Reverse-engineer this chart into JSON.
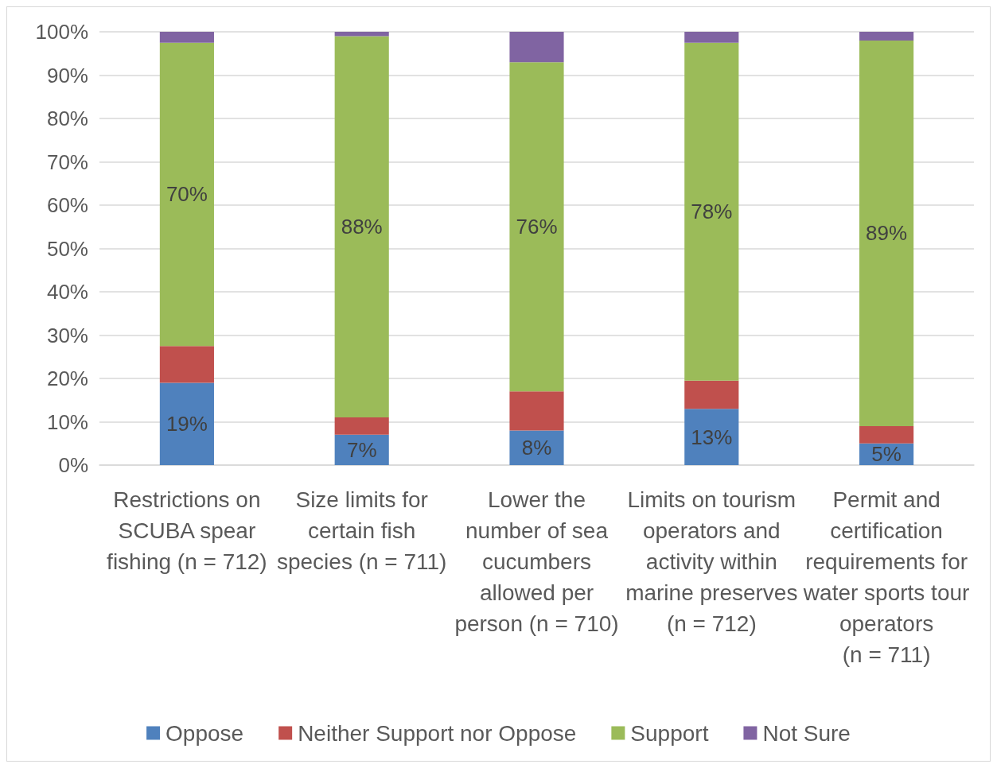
{
  "chart_data": {
    "type": "bar",
    "stacked": true,
    "categories": [
      "Restrictions on SCUBA spear fishing (n = 712)",
      "Size limits for certain fish species (n = 711)",
      "Lower the number of sea cucumbers allowed per person (n = 710)",
      "Limits on tourism operators and activity within marine preserves (n = 712)",
      "Permit and certification requirements for water sports tour operators (n = 711)"
    ],
    "series": [
      {
        "name": "Oppose",
        "color": "#4f81bd",
        "values": [
          19,
          7,
          8,
          13,
          5
        ],
        "value_labels": [
          "19%",
          "7%",
          "8%",
          "13%",
          "5%"
        ]
      },
      {
        "name": "Neither Support nor Oppose",
        "color": "#c0504d",
        "values": [
          8.5,
          4,
          9,
          6.5,
          4
        ]
      },
      {
        "name": "Support",
        "color": "#9bbb59",
        "values": [
          70,
          88,
          76,
          78,
          89
        ],
        "value_labels": [
          "70%",
          "88%",
          "76%",
          "78%",
          "89%"
        ]
      },
      {
        "name": "Not Sure",
        "color": "#8064a2",
        "values": [
          2.5,
          1,
          7,
          2.5,
          2
        ]
      }
    ],
    "ylim": [
      0,
      100
    ],
    "yticks": [
      {
        "value": 0,
        "label": "0%"
      },
      {
        "value": 10,
        "label": "10%"
      },
      {
        "value": 20,
        "label": "20%"
      },
      {
        "value": 30,
        "label": "30%"
      },
      {
        "value": 40,
        "label": "40%"
      },
      {
        "value": 50,
        "label": "50%"
      },
      {
        "value": 60,
        "label": "60%"
      },
      {
        "value": 70,
        "label": "70%"
      },
      {
        "value": 80,
        "label": "80%"
      },
      {
        "value": 90,
        "label": "90%"
      },
      {
        "value": 100,
        "label": "100%"
      }
    ],
    "grid": "y",
    "legend": "bottom"
  }
}
